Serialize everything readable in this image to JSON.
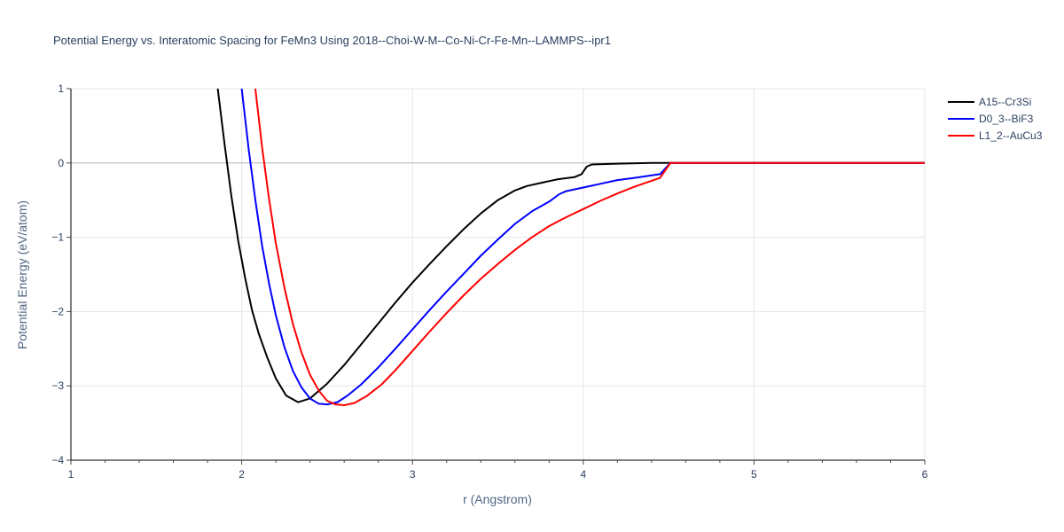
{
  "chart_data": {
    "type": "line",
    "title": "Potential Energy vs. Interatomic Spacing for FeMn3 Using 2018--Choi-W-M--Co-Ni-Cr-Fe-Mn--LAMMPS--ipr1",
    "xlabel": "r (Angstrom)",
    "ylabel": "Potential Energy (eV/atom)",
    "xlim": [
      1,
      6
    ],
    "ylim": [
      -4,
      1
    ],
    "xticks": [
      1,
      2,
      3,
      4,
      5,
      6
    ],
    "yticks": [
      1,
      0,
      -1,
      -2,
      -3,
      -4
    ],
    "xtick_labels": [
      "1",
      "2",
      "3",
      "4",
      "5",
      "6"
    ],
    "ytick_labels": [
      "1",
      "0",
      "−1",
      "−2",
      "−3",
      "−4"
    ],
    "grid": true,
    "legend_position": "top-right",
    "series": [
      {
        "name": "A15--Cr3Si",
        "color": "#000000",
        "x": [
          1.86,
          1.9,
          1.94,
          1.98,
          2.02,
          2.06,
          2.1,
          2.15,
          2.2,
          2.26,
          2.33,
          2.4,
          2.5,
          2.6,
          2.7,
          2.8,
          2.9,
          3.0,
          3.1,
          3.2,
          3.3,
          3.4,
          3.5,
          3.6,
          3.67,
          3.75,
          3.85,
          3.95,
          3.99,
          4.02,
          4.05,
          4.2,
          4.4,
          4.5,
          6.0
        ],
        "y": [
          1.0,
          0.25,
          -0.45,
          -1.05,
          -1.55,
          -1.98,
          -2.3,
          -2.62,
          -2.9,
          -3.13,
          -3.22,
          -3.17,
          -2.97,
          -2.72,
          -2.44,
          -2.16,
          -1.88,
          -1.61,
          -1.36,
          -1.12,
          -0.89,
          -0.68,
          -0.5,
          -0.37,
          -0.31,
          -0.27,
          -0.22,
          -0.19,
          -0.15,
          -0.05,
          -0.02,
          -0.01,
          0.0,
          0.0,
          0.0
        ]
      },
      {
        "name": "D0_3--BiF3",
        "color": "#0000ff",
        "x": [
          2.0,
          2.04,
          2.08,
          2.12,
          2.16,
          2.2,
          2.25,
          2.3,
          2.35,
          2.4,
          2.45,
          2.5,
          2.56,
          2.62,
          2.7,
          2.8,
          2.9,
          3.0,
          3.1,
          3.2,
          3.3,
          3.4,
          3.5,
          3.6,
          3.7,
          3.8,
          3.86,
          3.9,
          4.0,
          4.1,
          4.2,
          4.3,
          4.45,
          4.51,
          6.0
        ],
        "y": [
          1.0,
          0.2,
          -0.5,
          -1.12,
          -1.62,
          -2.05,
          -2.48,
          -2.8,
          -3.02,
          -3.17,
          -3.24,
          -3.25,
          -3.22,
          -3.13,
          -2.98,
          -2.75,
          -2.5,
          -2.24,
          -1.98,
          -1.73,
          -1.49,
          -1.25,
          -1.03,
          -0.82,
          -0.65,
          -0.52,
          -0.42,
          -0.38,
          -0.33,
          -0.28,
          -0.23,
          -0.2,
          -0.15,
          0.0,
          0.0
        ]
      },
      {
        "name": "L1_2--AuCu3",
        "color": "#ff0000",
        "x": [
          2.08,
          2.12,
          2.16,
          2.2,
          2.25,
          2.3,
          2.35,
          2.4,
          2.45,
          2.5,
          2.55,
          2.6,
          2.66,
          2.73,
          2.82,
          2.9,
          3.0,
          3.1,
          3.2,
          3.3,
          3.4,
          3.5,
          3.6,
          3.7,
          3.8,
          3.9,
          4.0,
          4.1,
          4.2,
          4.3,
          4.45,
          4.51,
          6.0
        ],
        "y": [
          1.0,
          0.2,
          -0.48,
          -1.08,
          -1.68,
          -2.17,
          -2.55,
          -2.85,
          -3.06,
          -3.2,
          -3.25,
          -3.26,
          -3.23,
          -3.14,
          -2.98,
          -2.79,
          -2.53,
          -2.27,
          -2.02,
          -1.78,
          -1.56,
          -1.36,
          -1.17,
          -1.0,
          -0.85,
          -0.73,
          -0.62,
          -0.51,
          -0.41,
          -0.32,
          -0.2,
          0.0,
          0.0
        ]
      }
    ]
  }
}
